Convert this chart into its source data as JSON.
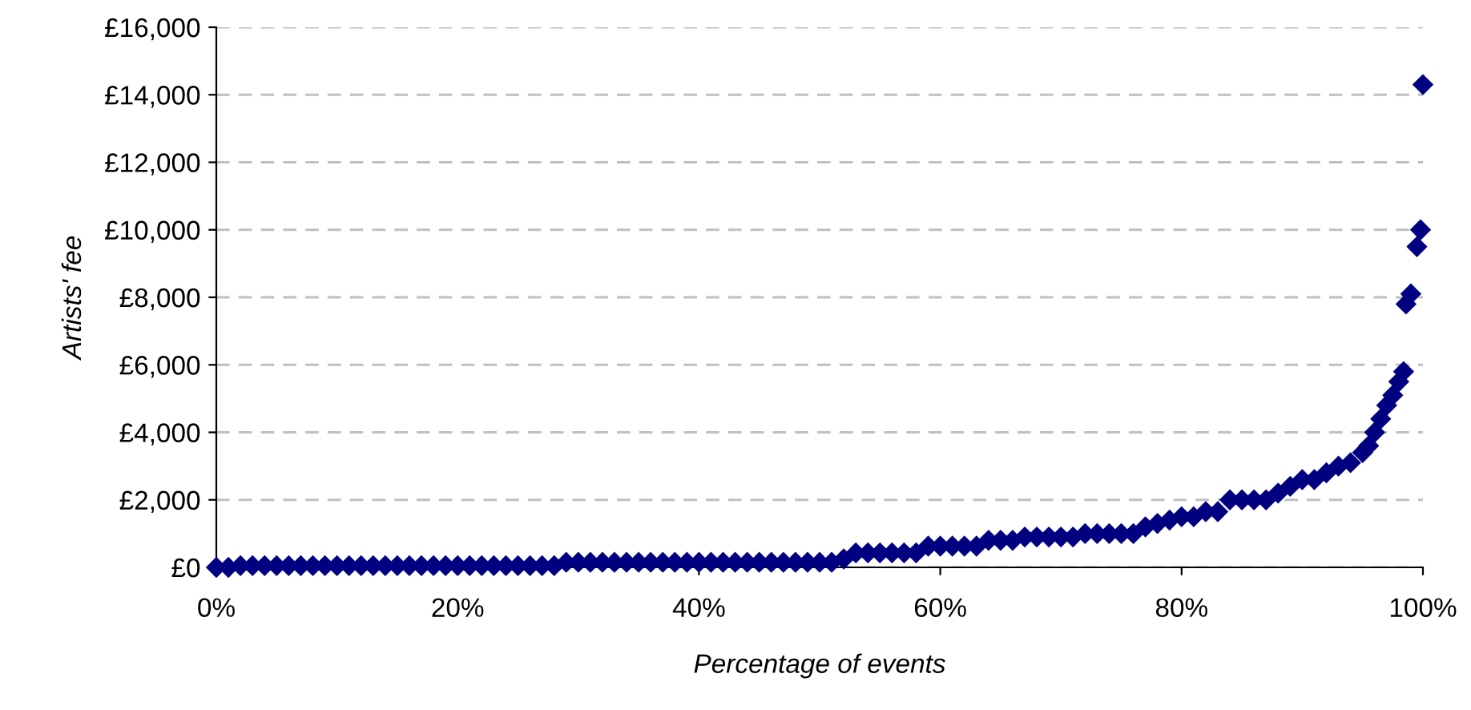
{
  "chart_data": {
    "type": "scatter",
    "xlabel": "Percentage of events",
    "ylabel": "Artists' fee",
    "marker": "diamond",
    "grid": "y",
    "legend": false,
    "xlim": [
      0,
      1
    ],
    "xticks": [
      {
        "value": 0,
        "label": "0%"
      },
      {
        "value": 0.2,
        "label": "20%"
      },
      {
        "value": 0.4,
        "label": "40%"
      },
      {
        "value": 0.6,
        "label": "60%"
      },
      {
        "value": 0.8,
        "label": "80%"
      },
      {
        "value": 1,
        "label": "100%"
      }
    ],
    "ylim": [
      0,
      16000
    ],
    "yticks": [
      {
        "value": 0,
        "label": "£0"
      },
      {
        "value": 2000,
        "label": "£2,000"
      },
      {
        "value": 4000,
        "label": "£4,000"
      },
      {
        "value": 6000,
        "label": "£6,000"
      },
      {
        "value": 8000,
        "label": "£8,000"
      },
      {
        "value": 10000,
        "label": "£10,000"
      },
      {
        "value": 12000,
        "label": "£12,000"
      },
      {
        "value": 14000,
        "label": "£14,000"
      },
      {
        "value": 16000,
        "label": "£16,000"
      }
    ],
    "series": [
      {
        "color": "#000080",
        "x": [
          0,
          0.01,
          0.02,
          0.03,
          0.04,
          0.05,
          0.06,
          0.07,
          0.08,
          0.09,
          0.1,
          0.11,
          0.12,
          0.13,
          0.14,
          0.15,
          0.16,
          0.17,
          0.18,
          0.19,
          0.2,
          0.21,
          0.22,
          0.23,
          0.24,
          0.25,
          0.26,
          0.27,
          0.28,
          0.29,
          0.3,
          0.31,
          0.32,
          0.33,
          0.34,
          0.35,
          0.36,
          0.37,
          0.38,
          0.39,
          0.4,
          0.41,
          0.42,
          0.43,
          0.44,
          0.45,
          0.46,
          0.47,
          0.48,
          0.49,
          0.5,
          0.51,
          0.52,
          0.53,
          0.54,
          0.55,
          0.56,
          0.57,
          0.58,
          0.59,
          0.6,
          0.61,
          0.62,
          0.63,
          0.64,
          0.65,
          0.66,
          0.67,
          0.68,
          0.69,
          0.7,
          0.71,
          0.72,
          0.73,
          0.74,
          0.75,
          0.76,
          0.77,
          0.78,
          0.79,
          0.8,
          0.81,
          0.82,
          0.83,
          0.84,
          0.85,
          0.86,
          0.87,
          0.88,
          0.89,
          0.9,
          0.91,
          0.92,
          0.93,
          0.94,
          0.95,
          0.955,
          0.96,
          0.965,
          0.97,
          0.975,
          0.98,
          0.984,
          0.986,
          0.99,
          0.995,
          0.998,
          1.0
        ],
        "values": [
          0,
          0,
          50,
          50,
          50,
          50,
          50,
          50,
          50,
          50,
          50,
          50,
          50,
          50,
          50,
          50,
          50,
          50,
          50,
          50,
          50,
          50,
          50,
          50,
          50,
          50,
          50,
          50,
          50,
          150,
          150,
          150,
          150,
          150,
          150,
          150,
          150,
          150,
          150,
          150,
          150,
          150,
          150,
          150,
          150,
          150,
          150,
          150,
          150,
          150,
          150,
          150,
          250,
          430,
          430,
          430,
          430,
          430,
          430,
          630,
          630,
          630,
          630,
          630,
          800,
          800,
          800,
          900,
          900,
          900,
          900,
          900,
          1000,
          1000,
          1000,
          1000,
          1000,
          1200,
          1300,
          1400,
          1500,
          1500,
          1650,
          1650,
          2000,
          2000,
          2000,
          2000,
          2200,
          2400,
          2600,
          2600,
          2800,
          3000,
          3100,
          3400,
          3600,
          4000,
          4400,
          4800,
          5100,
          5500,
          5800,
          7800,
          8100,
          9500,
          10000,
          14300
        ]
      }
    ]
  }
}
